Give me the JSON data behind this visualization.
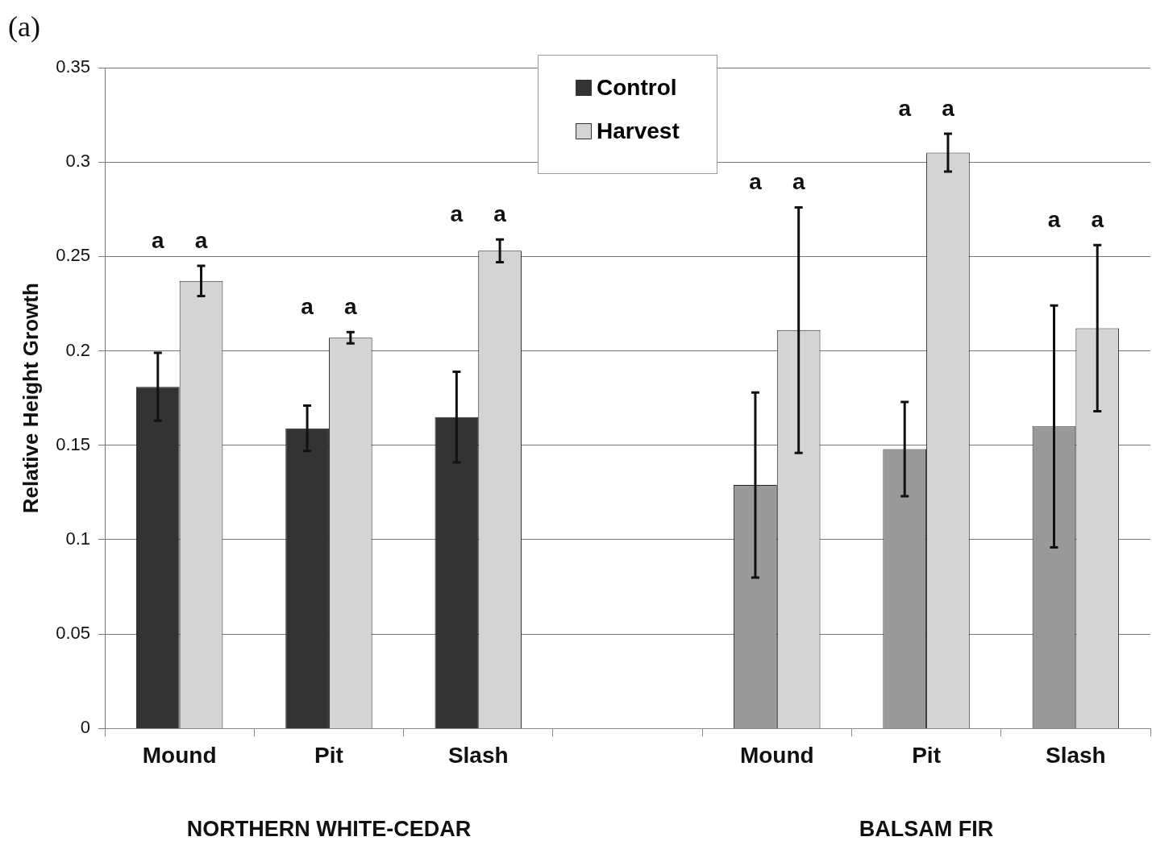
{
  "chart_data": {
    "type": "bar",
    "categories": [
      "Mound",
      "Pit",
      "Slash",
      null,
      "Mound",
      "Pit",
      "Slash"
    ],
    "series": [
      {
        "name": "Control",
        "color": "#333333",
        "colors": [
          "#333333",
          "#333333",
          "#333333",
          "#333333",
          "#999999",
          "#999999",
          "#999999"
        ],
        "values": [
          0.181,
          0.159,
          0.165,
          null,
          0.129,
          0.148,
          0.16
        ],
        "errors": [
          0.018,
          0.012,
          0.024,
          null,
          0.049,
          0.025,
          0.064
        ]
      },
      {
        "name": "Harvest",
        "color": "#d4d4d4",
        "values": [
          0.237,
          0.207,
          0.253,
          null,
          0.211,
          0.305,
          0.212
        ],
        "errors": [
          0.008,
          0.003,
          0.006,
          null,
          0.065,
          0.01,
          0.044
        ]
      }
    ],
    "ylabel": "Relative Height Growth",
    "ylim": [
      0,
      0.35
    ],
    "yticks": [
      0,
      0.05,
      0.1,
      0.15,
      0.2,
      0.25,
      0.3,
      0.35
    ],
    "grid": "y",
    "legend": "top",
    "annotations": [
      "(a)",
      "NORTHERN WHITE-CEDAR",
      "BALSAM FIR",
      "a",
      "a",
      "a",
      "a",
      "a",
      "a",
      "a",
      "a",
      "a",
      "a",
      "a",
      "a"
    ]
  }
}
